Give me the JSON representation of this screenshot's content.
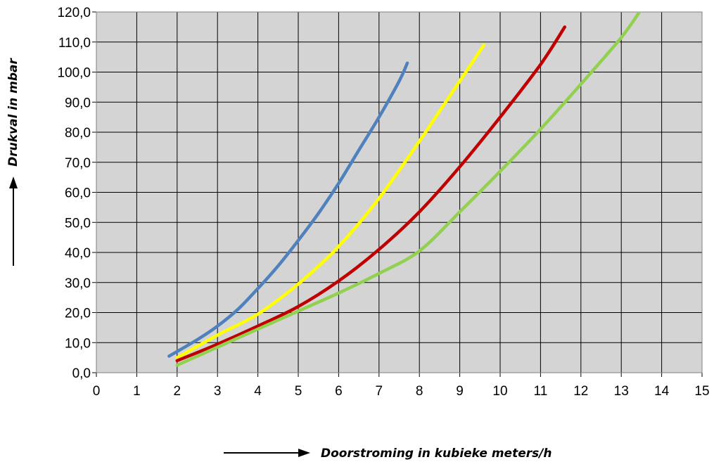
{
  "chart_data": {
    "type": "line",
    "title": "",
    "xlabel": "Doorstroming in kubieke meters/h",
    "ylabel": "Drukval in mbar",
    "xlim": [
      0,
      15
    ],
    "ylim": [
      0,
      120
    ],
    "x_ticks": [
      "0",
      "1",
      "2",
      "3",
      "4",
      "5",
      "6",
      "7",
      "8",
      "9",
      "10",
      "11",
      "12",
      "13",
      "14",
      "15"
    ],
    "y_ticks": [
      "0,0",
      "10,0",
      "20,0",
      "30,0",
      "40,0",
      "50,0",
      "60,0",
      "70,0",
      "80,0",
      "90,0",
      "100,0",
      "110,0",
      "120,0"
    ],
    "grid": true,
    "plot_background": "#d4d4d4",
    "legend": "none",
    "series": [
      {
        "color": "#4f81bd",
        "x": [
          1.8,
          2.5,
          3.0,
          3.5,
          4.0,
          4.5,
          5.0,
          5.5,
          6.0,
          6.5,
          7.0,
          7.5,
          7.7
        ],
        "y": [
          5.5,
          11,
          15.5,
          21,
          28,
          35.5,
          44,
          53,
          63,
          74,
          85,
          97,
          103
        ]
      },
      {
        "color": "#ffff00",
        "x": [
          2.0,
          3.0,
          4.0,
          5.0,
          6.0,
          7.0,
          8.0,
          8.5,
          9.0,
          9.3,
          9.6
        ],
        "y": [
          5,
          12.5,
          19.5,
          29.5,
          42,
          58,
          77,
          87,
          97,
          103,
          109
        ]
      },
      {
        "color": "#c00000",
        "x": [
          2.0,
          3.0,
          4.0,
          5.0,
          6.0,
          7.0,
          8.0,
          9.0,
          10.0,
          11.0,
          11.6
        ],
        "y": [
          4,
          9.5,
          15.5,
          22,
          30.5,
          41,
          53.5,
          68.5,
          85,
          102.5,
          115
        ]
      },
      {
        "color": "#92d050",
        "x": [
          2.0,
          3.0,
          4.0,
          5.0,
          6.0,
          7.0,
          8.0,
          9.0,
          10.0,
          11.0,
          12.0,
          13.0,
          13.5
        ],
        "y": [
          2.5,
          8.5,
          14.5,
          20.5,
          26.5,
          33,
          40.5,
          53.5,
          67,
          81,
          96,
          111.5,
          121
        ]
      }
    ]
  }
}
